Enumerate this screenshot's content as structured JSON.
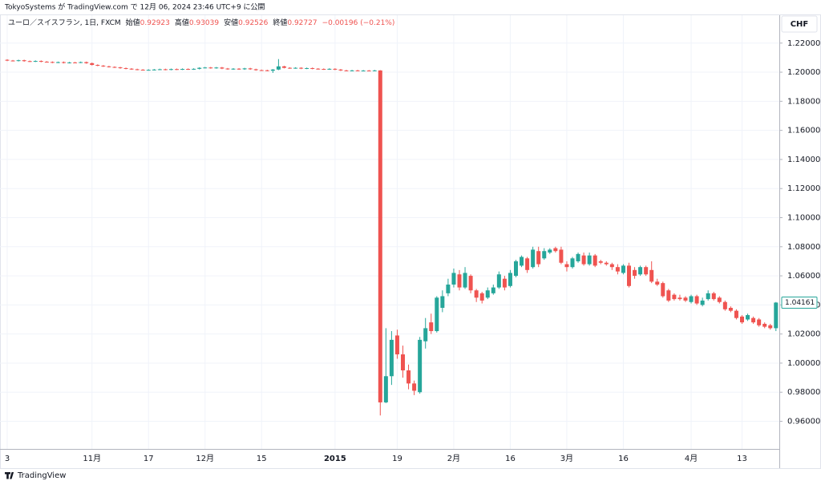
{
  "header": {
    "published": "TokyoSystems が TradingView.com で 12月 06, 2024 23:46 UTC+9 に公開",
    "symbol": "ユーロ／スイスフラン, 1日, FXCM",
    "ohlc": [
      {
        "label": "始値",
        "value": "0.92923"
      },
      {
        "label": "高値",
        "value": "0.93039"
      },
      {
        "label": "安値",
        "value": "0.92526"
      },
      {
        "label": "終値",
        "value": "0.92727"
      }
    ],
    "change": "−0.00196 (−0.21%)",
    "currency": "CHF"
  },
  "footer": {
    "brand": "TradingView"
  },
  "chart_data": {
    "type": "candlestick",
    "up_color": "#26a69a",
    "down_color": "#ef5350",
    "grid": true,
    "ylim": [
      0.941,
      1.2375
    ],
    "yticks": [
      {
        "value": 0.96,
        "label": "0.96000"
      },
      {
        "value": 0.98,
        "label": "0.98000"
      },
      {
        "value": 1.0,
        "label": "1.00000"
      },
      {
        "value": 1.02,
        "label": "1.02000"
      },
      {
        "value": 1.04,
        "label": "1.04000"
      },
      {
        "value": 1.06,
        "label": "1.06000"
      },
      {
        "value": 1.08,
        "label": "1.08000"
      },
      {
        "value": 1.1,
        "label": "1.10000"
      },
      {
        "value": 1.12,
        "label": "1.12000"
      },
      {
        "value": 1.14,
        "label": "1.14000"
      },
      {
        "value": 1.16,
        "label": "1.16000"
      },
      {
        "value": 1.18,
        "label": "1.18000"
      },
      {
        "value": 1.2,
        "label": "1.20000"
      },
      {
        "value": 1.22,
        "label": "1.22000"
      }
    ],
    "categories": [
      "3",
      null,
      null,
      null,
      null,
      null,
      null,
      null,
      null,
      null,
      null,
      null,
      null,
      null,
      null,
      "11月",
      null,
      null,
      null,
      null,
      null,
      null,
      null,
      null,
      null,
      "17",
      null,
      null,
      null,
      null,
      null,
      null,
      null,
      null,
      null,
      "12月",
      null,
      null,
      null,
      null,
      null,
      null,
      null,
      null,
      null,
      "15",
      null,
      null,
      null,
      null,
      null,
      null,
      null,
      null,
      null,
      null,
      null,
      null,
      "2015",
      null,
      null,
      null,
      null,
      null,
      null,
      null,
      null,
      null,
      null,
      "19",
      null,
      null,
      null,
      null,
      null,
      null,
      null,
      null,
      null,
      "2月",
      null,
      null,
      null,
      null,
      null,
      null,
      null,
      null,
      null,
      "16",
      null,
      null,
      null,
      null,
      null,
      null,
      null,
      null,
      null,
      "3月",
      null,
      null,
      null,
      null,
      null,
      null,
      null,
      null,
      null,
      "16",
      null,
      null,
      null,
      null,
      null,
      null,
      null,
      null,
      null,
      null,
      null,
      "4月",
      null,
      null,
      null,
      null,
      null,
      null,
      null,
      null,
      "13",
      null,
      null,
      null,
      null,
      null,
      null
    ],
    "open": [
      1.2085,
      1.208,
      1.2078,
      1.2082,
      1.2076,
      1.2074,
      1.2077,
      1.2072,
      1.207,
      1.2066,
      1.2069,
      1.2064,
      1.2067,
      1.2066,
      1.2069,
      1.2062,
      1.205,
      1.2045,
      1.204,
      1.2036,
      1.2033,
      1.2028,
      1.2024,
      1.202,
      1.2017,
      1.2015,
      1.2016,
      1.2018,
      1.202,
      1.2017,
      1.2021,
      1.2019,
      1.2022,
      1.202,
      1.2023,
      1.203,
      1.2032,
      1.2028,
      1.2032,
      1.2025,
      1.2021,
      1.2024,
      1.202,
      1.2026,
      1.202,
      1.2014,
      1.2013,
      1.201,
      1.2018,
      1.204,
      1.203,
      1.2028,
      1.203,
      1.2025,
      1.2028,
      1.2024,
      1.2022,
      1.202,
      1.2023,
      1.2018,
      1.2012,
      1.201,
      1.2012,
      1.201,
      1.2011,
      1.201,
      1.2012,
      0.973,
      0.991,
      1.019,
      1.006,
      0.995,
      0.986,
      0.98,
      1.015,
      1.028,
      1.022,
      1.038,
      1.048,
      1.054,
      1.061,
      1.052,
      1.06,
      1.05,
      1.048,
      1.045,
      1.048,
      1.052,
      1.058,
      1.053,
      1.06,
      1.067,
      1.072,
      1.066,
      1.077,
      1.072,
      1.076,
      1.079,
      1.078,
      1.068,
      1.066,
      1.07,
      1.074,
      1.068,
      1.074,
      1.07,
      1.069,
      1.068,
      1.066,
      1.062,
      1.067,
      1.064,
      1.061,
      1.066,
      1.064,
      1.056,
      1.055,
      1.05,
      1.047,
      1.045,
      1.045,
      1.042,
      1.046,
      1.04,
      1.044,
      1.048,
      1.045,
      1.042,
      1.038,
      1.036,
      1.032,
      1.03,
      1.031,
      1.03,
      1.027,
      1.026,
      1.024
    ],
    "high": [
      1.2089,
      1.2084,
      1.2086,
      1.2086,
      1.208,
      1.2081,
      1.2081,
      1.2076,
      1.2074,
      1.2073,
      1.2073,
      1.2071,
      1.2071,
      1.2073,
      1.2073,
      1.2066,
      1.2054,
      1.2049,
      1.2044,
      1.204,
      1.2037,
      1.2032,
      1.2028,
      1.2024,
      1.2021,
      1.202,
      1.2022,
      1.2024,
      1.2024,
      1.2025,
      1.2025,
      1.2026,
      1.2026,
      1.2027,
      1.2034,
      1.2036,
      1.2036,
      1.2036,
      1.2036,
      1.2029,
      1.2028,
      1.2028,
      1.203,
      1.203,
      1.2024,
      1.2018,
      1.2017,
      1.2022,
      1.209,
      1.2044,
      1.2034,
      1.2034,
      1.2034,
      1.2032,
      1.2032,
      1.2028,
      1.2026,
      1.2027,
      1.2027,
      1.2022,
      1.2016,
      1.2016,
      1.2016,
      1.2015,
      1.2015,
      1.2016,
      1.2014,
      1.024,
      1.022,
      1.023,
      1.012,
      0.999,
      0.988,
      1.018,
      1.031,
      1.034,
      1.046,
      1.05,
      1.058,
      1.065,
      1.064,
      1.066,
      1.061,
      1.051,
      1.049,
      1.052,
      1.054,
      1.063,
      1.06,
      1.064,
      1.071,
      1.074,
      1.073,
      1.08,
      1.08,
      1.079,
      1.079,
      1.08,
      1.08,
      1.07,
      1.073,
      1.076,
      1.076,
      1.076,
      1.075,
      1.071,
      1.07,
      1.069,
      1.068,
      1.068,
      1.069,
      1.066,
      1.067,
      1.067,
      1.07,
      1.058,
      1.056,
      1.051,
      1.048,
      1.047,
      1.046,
      1.047,
      1.047,
      1.045,
      1.05,
      1.049,
      1.046,
      1.043,
      1.039,
      1.037,
      1.033,
      1.034,
      1.032,
      1.031,
      1.028,
      1.027,
      1.042
    ],
    "low": [
      1.2076,
      1.2074,
      1.2074,
      1.2072,
      1.207,
      1.207,
      1.2068,
      1.2066,
      1.2062,
      1.2062,
      1.206,
      1.206,
      1.2062,
      1.2062,
      1.2058,
      1.2046,
      1.2041,
      1.2036,
      1.2032,
      1.2029,
      1.2024,
      1.202,
      1.2016,
      1.2013,
      1.2011,
      1.2011,
      1.2012,
      1.2014,
      1.2013,
      1.2013,
      1.2015,
      1.2015,
      1.2016,
      1.2016,
      1.2019,
      1.2026,
      1.2024,
      1.2024,
      1.2021,
      1.2017,
      1.2017,
      1.2016,
      1.2016,
      1.2016,
      1.201,
      1.2009,
      1.2006,
      1.1995,
      1.2014,
      1.2026,
      1.2024,
      1.2024,
      1.2021,
      1.2021,
      1.202,
      1.2018,
      1.2016,
      1.2016,
      1.2014,
      1.2008,
      1.2006,
      1.2006,
      1.2006,
      1.2006,
      1.2006,
      1.2006,
      0.964,
      0.9725,
      0.985,
      1.003,
      0.99,
      0.982,
      0.978,
      0.979,
      1.01,
      1.02,
      1.021,
      1.035,
      1.046,
      1.052,
      1.05,
      1.051,
      1.048,
      1.042,
      1.041,
      1.044,
      1.047,
      1.051,
      1.05,
      1.052,
      1.059,
      1.066,
      1.062,
      1.065,
      1.066,
      1.071,
      1.075,
      1.076,
      1.068,
      1.063,
      1.065,
      1.069,
      1.067,
      1.067,
      1.066,
      1.068,
      1.067,
      1.064,
      1.061,
      1.061,
      1.052,
      1.058,
      1.06,
      1.06,
      1.055,
      1.053,
      1.045,
      1.042,
      1.043,
      1.043,
      1.042,
      1.041,
      1.04,
      1.039,
      1.043,
      1.043,
      1.041,
      1.036,
      1.035,
      1.03,
      1.027,
      1.029,
      1.027,
      1.025,
      1.024,
      1.023,
      1.022
    ],
    "close": [
      1.208,
      1.2078,
      1.2082,
      1.2076,
      1.2074,
      1.2077,
      1.2072,
      1.207,
      1.2066,
      1.2069,
      1.2064,
      1.2067,
      1.2066,
      1.2069,
      1.2062,
      1.205,
      1.2045,
      1.204,
      1.2036,
      1.2033,
      1.2028,
      1.2024,
      1.202,
      1.2017,
      1.2015,
      1.2016,
      1.2018,
      1.202,
      1.2017,
      1.2021,
      1.2019,
      1.2022,
      1.202,
      1.2023,
      1.203,
      1.2032,
      1.2028,
      1.2032,
      1.2025,
      1.2021,
      1.2024,
      1.202,
      1.2026,
      1.202,
      1.2014,
      1.2013,
      1.201,
      1.2018,
      1.204,
      1.203,
      1.2028,
      1.203,
      1.2025,
      1.2028,
      1.2024,
      1.2022,
      1.202,
      1.2023,
      1.2018,
      1.2012,
      1.201,
      1.2012,
      1.201,
      1.2011,
      1.201,
      1.2012,
      0.973,
      0.991,
      1.016,
      1.006,
      0.995,
      0.986,
      0.981,
      1.016,
      1.024,
      1.022,
      1.045,
      1.046,
      1.054,
      1.062,
      1.052,
      1.062,
      1.05,
      1.045,
      1.043,
      1.05,
      1.052,
      1.061,
      1.052,
      1.062,
      1.07,
      1.073,
      1.064,
      1.078,
      1.068,
      1.077,
      1.078,
      1.077,
      1.069,
      1.066,
      1.072,
      1.075,
      1.068,
      1.074,
      1.067,
      1.069,
      1.068,
      1.066,
      1.063,
      1.067,
      1.053,
      1.06,
      1.066,
      1.061,
      1.056,
      1.054,
      1.046,
      1.043,
      1.044,
      1.044,
      1.043,
      1.046,
      1.041,
      1.043,
      1.048,
      1.044,
      1.042,
      1.037,
      1.036,
      1.031,
      1.028,
      1.033,
      1.028,
      1.026,
      1.025,
      1.024,
      1.04161
    ]
  }
}
